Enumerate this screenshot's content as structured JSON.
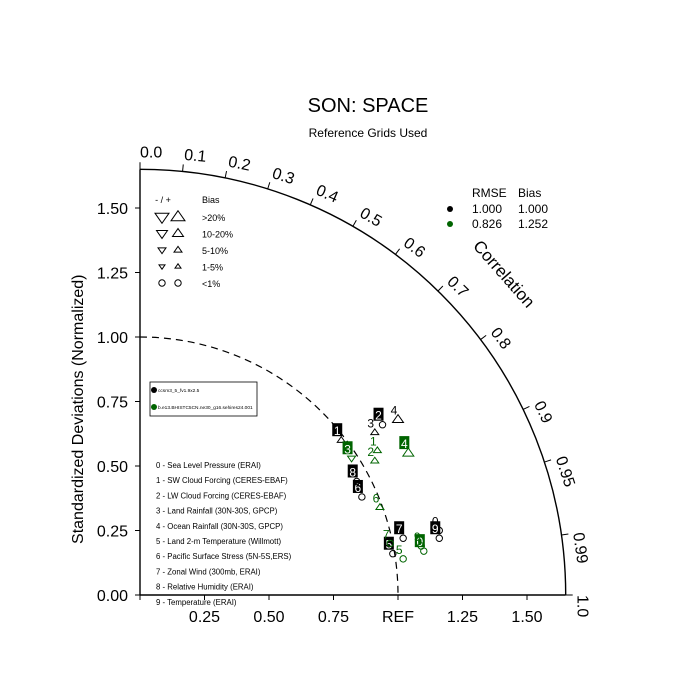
{
  "chart_data": {
    "type": "scatter",
    "subtype": "taylor-diagram",
    "title": "SON: SPACE",
    "subtitle": "Reference Grids Used",
    "ylabel": "Standardized Deviations (Normalized)",
    "arc_label": "Correlation",
    "ref_label": "REF",
    "std_ticks": [
      {
        "value": 0.0,
        "label": "0.00"
      },
      {
        "value": 0.25,
        "label": "0.25"
      },
      {
        "value": 0.5,
        "label": "0.50"
      },
      {
        "value": 0.75,
        "label": "0.75"
      },
      {
        "value": 1.0,
        "label": "1.00"
      },
      {
        "value": 1.25,
        "label": "1.25"
      },
      {
        "value": 1.5,
        "label": "1.50"
      }
    ],
    "x_tick_labels": [
      {
        "value": 0.25,
        "label": "0.25"
      },
      {
        "value": 0.5,
        "label": "0.50"
      },
      {
        "value": 0.75,
        "label": "0.75"
      },
      {
        "value": 1.25,
        "label": "1.25"
      },
      {
        "value": 1.5,
        "label": "1.50"
      }
    ],
    "corr_ticks": [
      {
        "value": 0.0,
        "label": "0.0"
      },
      {
        "value": 0.1,
        "label": "0.1"
      },
      {
        "value": 0.2,
        "label": "0.2"
      },
      {
        "value": 0.3,
        "label": "0.3"
      },
      {
        "value": 0.4,
        "label": "0.4"
      },
      {
        "value": 0.5,
        "label": "0.5"
      },
      {
        "value": 0.6,
        "label": "0.6"
      },
      {
        "value": 0.7,
        "label": "0.7"
      },
      {
        "value": 0.8,
        "label": "0.8"
      },
      {
        "value": 0.9,
        "label": "0.9"
      },
      {
        "value": 0.95,
        "label": "0.95"
      },
      {
        "value": 0.99,
        "label": "0.99"
      },
      {
        "value": 1.0,
        "label": "1.0"
      }
    ],
    "bias_legend": {
      "header_sign": "- / +",
      "header_bias": "Bias",
      "entries": [
        {
          "label": ">20%"
        },
        {
          "label": "10-20%"
        },
        {
          "label": "5-10%"
        },
        {
          "label": "1-5%"
        },
        {
          "label": "<1%"
        }
      ]
    },
    "stats_header": {
      "rmse": "RMSE",
      "bias": "Bias"
    },
    "series": [
      {
        "name": "ccsm3_5_fv1.9x2.5",
        "color": "#000000",
        "rmse": "1.000",
        "bias": "1.000"
      },
      {
        "name": "b.e13.BHISTC5CN.ne30_g16.sehires24.001",
        "color": "#006400",
        "rmse": "0.826",
        "bias": "1.252"
      }
    ],
    "variables": [
      {
        "id": "0",
        "label": "0 - Sea Level Pressure (ERAI)"
      },
      {
        "id": "1",
        "label": "1 - SW Cloud Forcing (CERES-EBAF)"
      },
      {
        "id": "2",
        "label": "2 - LW Cloud Forcing (CERES-EBAF)"
      },
      {
        "id": "3",
        "label": "3 - Land Rainfall (30N-30S, GPCP)"
      },
      {
        "id": "4",
        "label": "4 - Ocean Rainfall (30N-30S, GPCP)"
      },
      {
        "id": "5",
        "label": "5 - Land 2-m Temperature (Willmott)"
      },
      {
        "id": "6",
        "label": "6 - Pacific Surface Stress (5N-5S,ERS)"
      },
      {
        "id": "7",
        "label": "7 - Zonal Wind (300mb, ERAI)"
      },
      {
        "id": "8",
        "label": "8 - Relative Humidity (ERAI)"
      },
      {
        "id": "9",
        "label": "9 - Temperature (ERAI)"
      }
    ],
    "points": [
      {
        "series": 0,
        "id": "0",
        "x": 1.16,
        "y": 0.25,
        "marker": "circle",
        "boxed": false
      },
      {
        "series": 0,
        "id": "1",
        "x": 0.78,
        "y": 0.6,
        "marker": "triangle-up-small",
        "boxed": true
      },
      {
        "series": 0,
        "id": "2",
        "x": 0.94,
        "y": 0.66,
        "marker": "circle",
        "boxed": true
      },
      {
        "series": 0,
        "id": "3",
        "x": 0.91,
        "y": 0.63,
        "marker": "triangle-up-small",
        "boxed": false
      },
      {
        "series": 0,
        "id": "4",
        "x": 1.0,
        "y": 0.68,
        "marker": "triangle-up-med",
        "boxed": false
      },
      {
        "series": 0,
        "id": "5",
        "x": 0.98,
        "y": 0.16,
        "marker": "circle",
        "boxed": true
      },
      {
        "series": 0,
        "id": "6",
        "x": 0.86,
        "y": 0.38,
        "marker": "circle",
        "boxed": true
      },
      {
        "series": 0,
        "id": "7",
        "x": 1.02,
        "y": 0.22,
        "marker": "circle",
        "boxed": true
      },
      {
        "series": 0,
        "id": "8",
        "x": 0.84,
        "y": 0.44,
        "marker": "circle",
        "boxed": true
      },
      {
        "series": 0,
        "id": "9",
        "x": 1.16,
        "y": 0.22,
        "marker": "circle",
        "boxed": true
      },
      {
        "series": 1,
        "id": "0",
        "x": 1.1,
        "y": 0.17,
        "marker": "circle",
        "boxed": true
      },
      {
        "series": 1,
        "id": "1",
        "x": 0.92,
        "y": 0.56,
        "marker": "triangle-up-small",
        "boxed": false
      },
      {
        "series": 1,
        "id": "2",
        "x": 0.91,
        "y": 0.52,
        "marker": "triangle-up-small",
        "boxed": false
      },
      {
        "series": 1,
        "id": "3",
        "x": 0.82,
        "y": 0.53,
        "marker": "triangle-down-small",
        "boxed": true
      },
      {
        "series": 1,
        "id": "4",
        "x": 1.04,
        "y": 0.55,
        "marker": "triangle-up-med",
        "boxed": true
      },
      {
        "series": 1,
        "id": "5",
        "x": 1.02,
        "y": 0.14,
        "marker": "circle",
        "boxed": false
      },
      {
        "series": 1,
        "id": "6",
        "x": 0.93,
        "y": 0.34,
        "marker": "triangle-up-small",
        "boxed": false
      },
      {
        "series": 1,
        "id": "7",
        "x": 0.97,
        "y": 0.2,
        "marker": "circle",
        "boxed": false
      },
      {
        "series": 1,
        "id": "9",
        "x": 1.09,
        "y": 0.19,
        "marker": "circle",
        "boxed": false
      }
    ],
    "std_range": [
      0,
      1.65
    ],
    "grid": false,
    "legend_placement": "left"
  }
}
